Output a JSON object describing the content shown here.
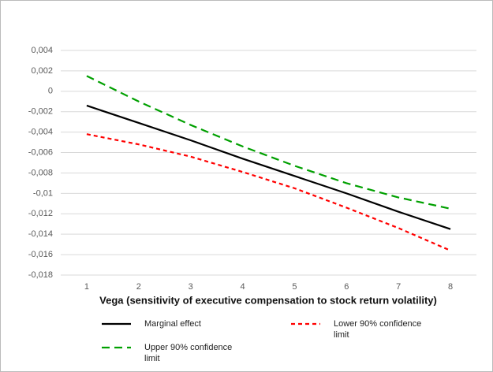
{
  "chart_data": {
    "type": "line",
    "x_label": "Vega (sensitivity of executive compensation to stock return volatility)",
    "categories": [
      "1",
      "2",
      "3",
      "4",
      "5",
      "6",
      "7",
      "8"
    ],
    "series": [
      {
        "name": "Marginal effect",
        "color": "#000000",
        "dash": "solid",
        "values": [
          -0.0014,
          -0.0031,
          -0.0048,
          -0.0066,
          -0.0083,
          -0.01,
          -0.0118,
          -0.0135
        ]
      },
      {
        "name": "Lower 90% confidence limit",
        "color": "#ff0000",
        "dash": "short",
        "values": [
          -0.0042,
          -0.0052,
          -0.0064,
          -0.0079,
          -0.0095,
          -0.0114,
          -0.0134,
          -0.0156
        ]
      },
      {
        "name": "Upper 90% confidence limit",
        "color": "#00a000",
        "dash": "long",
        "values": [
          0.0015,
          -0.001,
          -0.0033,
          -0.0054,
          -0.0073,
          -0.009,
          -0.0104,
          -0.0115
        ]
      }
    ],
    "ylim": [
      -0.018,
      0.004
    ],
    "yticks": [
      {
        "value": 0.004,
        "label": "0,004"
      },
      {
        "value": 0.002,
        "label": "0,002"
      },
      0,
      {
        "value": -0.002,
        "label": "-0,002"
      },
      {
        "value": -0.004,
        "label": "-0,004"
      },
      {
        "value": -0.006,
        "label": "-0,006"
      },
      {
        "value": -0.008,
        "label": "-0,008"
      },
      {
        "value": -0.01,
        "label": "-0,01"
      },
      {
        "value": -0.012,
        "label": "-0,012"
      },
      {
        "value": -0.014,
        "label": "-0,014"
      },
      {
        "value": -0.016,
        "label": "-0,016"
      },
      {
        "value": -0.018,
        "label": "-0,018"
      }
    ],
    "grid": true
  }
}
